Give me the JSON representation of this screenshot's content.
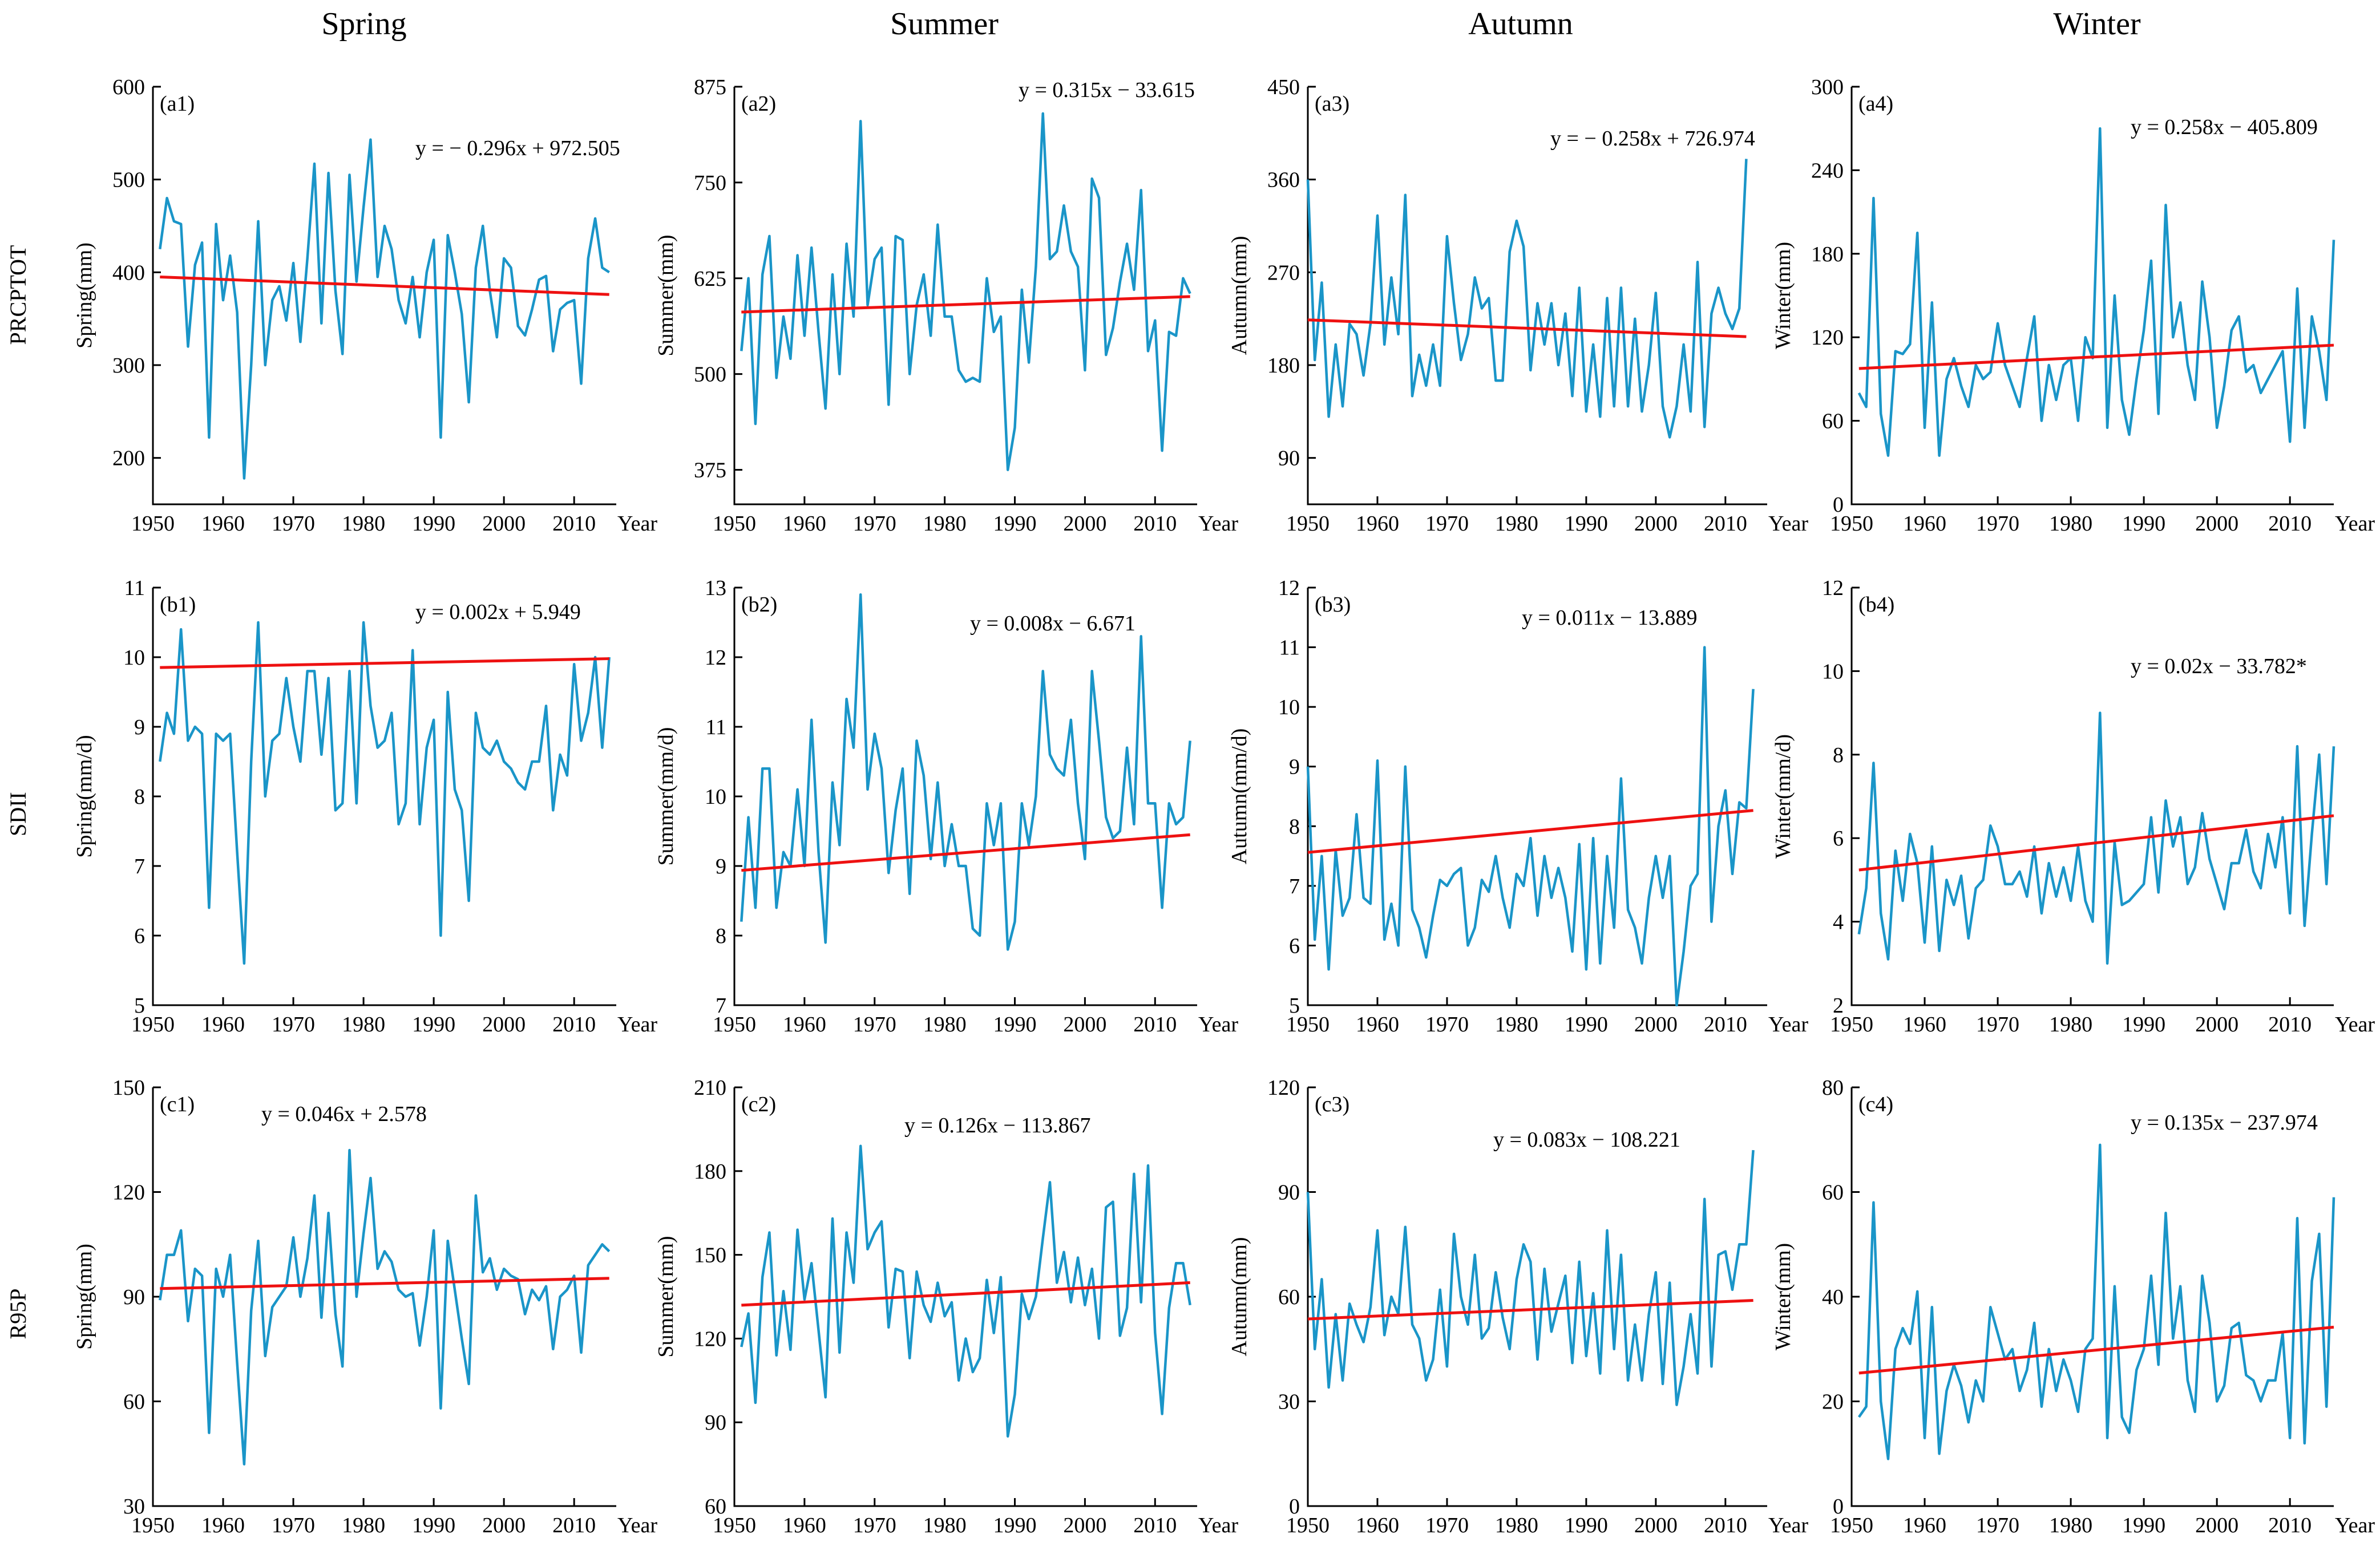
{
  "columns": [
    "Spring",
    "Summer",
    "Autumn",
    "Winter"
  ],
  "rows": [
    "PRCPTOT",
    "SDII",
    "R95P"
  ],
  "x_unit_label": "Year",
  "colors": {
    "series": "#1a95c8",
    "trend": "#ee1111",
    "axis": "#000000"
  },
  "chart_data": [
    {
      "id": "a1",
      "panel_label": "(a1)",
      "type": "line",
      "season": "Spring",
      "index": "PRCPTOT",
      "ylabel": "Spring(mm)",
      "xlabel": "Year",
      "xlim": [
        1950,
        2016
      ],
      "xticks": [
        1950,
        1960,
        1970,
        1980,
        1990,
        2000,
        2010
      ],
      "ylim": [
        150,
        600
      ],
      "yticks": [
        200,
        300,
        400,
        500,
        600
      ],
      "equation": "y = − 0.296x + 972.505",
      "trend": {
        "slope": -0.296,
        "intercept": 972.505
      },
      "x_start": 1951,
      "values": [
        425,
        480,
        455,
        452,
        320,
        408,
        432,
        222,
        452,
        370,
        418,
        357,
        178,
        300,
        455,
        300,
        370,
        385,
        348,
        410,
        325,
        415,
        517,
        345,
        507,
        380,
        312,
        505,
        390,
        470,
        543,
        395,
        450,
        425,
        370,
        345,
        395,
        330,
        400,
        435,
        222,
        440,
        400,
        355,
        260,
        405,
        450,
        380,
        330,
        415,
        405,
        342,
        332,
        360,
        392,
        396,
        315,
        360,
        367,
        370,
        280,
        415,
        458,
        405,
        400
      ]
    },
    {
      "id": "a2",
      "panel_label": "(a2)",
      "type": "line",
      "season": "Summer",
      "index": "PRCPTOT",
      "ylabel": "Summer(mm)",
      "xlabel": "Year",
      "xlim": [
        1950,
        2016
      ],
      "xticks": [
        1950,
        1960,
        1970,
        1980,
        1990,
        2000,
        2010
      ],
      "ylim": [
        330,
        875
      ],
      "yticks": [
        375,
        500,
        625,
        750,
        875
      ],
      "equation": "y = 0.315x − 33.615",
      "trend": {
        "slope": 0.315,
        "intercept": -33.615
      },
      "x_start": 1951,
      "values": [
        530,
        625,
        435,
        630,
        680,
        495,
        575,
        520,
        655,
        550,
        665,
        555,
        455,
        630,
        500,
        670,
        575,
        830,
        590,
        650,
        665,
        460,
        680,
        675,
        500,
        590,
        630,
        550,
        695,
        575,
        575,
        505,
        490,
        495,
        490,
        625,
        555,
        575,
        375,
        430,
        610,
        515,
        640,
        840,
        650,
        660,
        720,
        660,
        640,
        505,
        755,
        730,
        525,
        560,
        620,
        670,
        610,
        740,
        530,
        570,
        400,
        555,
        550,
        625,
        605
      ]
    },
    {
      "id": "a3",
      "panel_label": "(a3)",
      "type": "line",
      "season": "Autumn",
      "index": "PRCPTOT",
      "ylabel": "Autumn(mm)",
      "xlabel": "Year",
      "xlim": [
        1950,
        2016
      ],
      "xticks": [
        1950,
        1960,
        1970,
        1980,
        1990,
        2000,
        2010
      ],
      "ylim": [
        45,
        450
      ],
      "yticks": [
        90,
        180,
        270,
        360,
        450
      ],
      "equation": "y = − 0.258x + 726.974",
      "trend": {
        "slope": -0.258,
        "intercept": 726.974
      },
      "x_start": 1950,
      "values": [
        360,
        185,
        260,
        130,
        200,
        140,
        220,
        210,
        170,
        220,
        325,
        200,
        265,
        210,
        345,
        150,
        190,
        160,
        200,
        160,
        305,
        240,
        185,
        210,
        265,
        235,
        245,
        165,
        165,
        290,
        320,
        295,
        175,
        240,
        200,
        240,
        180,
        230,
        150,
        255,
        135,
        200,
        130,
        245,
        140,
        255,
        140,
        225,
        135,
        180,
        250,
        140,
        110,
        140,
        200,
        135,
        280,
        120,
        230,
        255,
        230,
        215,
        235,
        380
      ]
    },
    {
      "id": "a4",
      "panel_label": "(a4)",
      "type": "line",
      "season": "Winter",
      "index": "PRCPTOT",
      "ylabel": "Winter(mm)",
      "xlabel": "Year",
      "xlim": [
        1950,
        2016
      ],
      "xticks": [
        1950,
        1960,
        1970,
        1980,
        1990,
        2000,
        2010
      ],
      "ylim": [
        0,
        300
      ],
      "yticks": [
        0,
        60,
        120,
        180,
        240,
        300
      ],
      "equation": "y = 0.258x − 405.809",
      "trend": {
        "slope": 0.258,
        "intercept": -405.809
      },
      "x_start": 1951,
      "values": [
        80,
        70,
        220,
        65,
        35,
        110,
        108,
        115,
        195,
        55,
        145,
        35,
        90,
        105,
        85,
        70,
        100,
        90,
        95,
        130,
        100,
        85,
        70,
        105,
        135,
        60,
        100,
        75,
        100,
        105,
        60,
        120,
        105,
        270,
        55,
        150,
        75,
        50,
        90,
        125,
        175,
        65,
        215,
        120,
        145,
        100,
        75,
        160,
        120,
        55,
        85,
        125,
        135,
        95,
        100,
        80,
        90,
        100,
        110,
        45,
        155,
        55,
        135,
        110,
        75,
        190
      ]
    },
    {
      "id": "b1",
      "panel_label": "(b1)",
      "type": "line",
      "season": "Spring",
      "index": "SDII",
      "ylabel": "Spring(mm/d)",
      "xlabel": "Year",
      "xlim": [
        1950,
        2016
      ],
      "xticks": [
        1950,
        1960,
        1970,
        1980,
        1990,
        2000,
        2010
      ],
      "ylim": [
        5,
        11
      ],
      "yticks": [
        5,
        6,
        7,
        8,
        9,
        10,
        11
      ],
      "equation": "y = 0.002x + 5.949",
      "trend": {
        "slope": 0.002,
        "intercept": 5.949
      },
      "x_start": 1951,
      "values": [
        8.5,
        9.2,
        8.9,
        10.4,
        8.8,
        9.0,
        8.9,
        6.4,
        8.9,
        8.8,
        8.9,
        7.2,
        5.6,
        8.5,
        10.5,
        8.0,
        8.8,
        8.9,
        9.7,
        9.0,
        8.5,
        9.8,
        9.8,
        8.6,
        9.7,
        7.8,
        7.9,
        9.8,
        7.9,
        10.5,
        9.3,
        8.7,
        8.8,
        9.2,
        7.6,
        7.9,
        10.1,
        7.6,
        8.7,
        9.1,
        6.0,
        9.5,
        8.1,
        7.8,
        6.5,
        9.2,
        8.7,
        8.6,
        8.8,
        8.5,
        8.4,
        8.2,
        8.1,
        8.5,
        8.5,
        9.3,
        7.8,
        8.6,
        8.3,
        9.9,
        8.8,
        9.2,
        10.0,
        8.7,
        10.0
      ]
    },
    {
      "id": "b2",
      "panel_label": "(b2)",
      "type": "line",
      "season": "Summer",
      "index": "SDII",
      "ylabel": "Summer(mm/d)",
      "xlabel": "Year",
      "xlim": [
        1950,
        2016
      ],
      "xticks": [
        1950,
        1960,
        1970,
        1980,
        1990,
        2000,
        2010
      ],
      "ylim": [
        7,
        13
      ],
      "yticks": [
        7,
        8,
        9,
        10,
        11,
        12,
        13
      ],
      "equation": "y = 0.008x − 6.671",
      "trend": {
        "slope": 0.008,
        "intercept": -6.671
      },
      "x_start": 1951,
      "values": [
        8.2,
        9.7,
        8.4,
        10.4,
        10.4,
        8.4,
        9.2,
        9.0,
        10.1,
        9.0,
        11.1,
        9.2,
        7.9,
        10.2,
        9.3,
        11.4,
        10.7,
        12.9,
        10.1,
        10.9,
        10.4,
        8.9,
        9.8,
        10.4,
        8.6,
        10.8,
        10.3,
        9.1,
        10.2,
        9.0,
        9.6,
        9.0,
        9.0,
        8.1,
        8.0,
        9.9,
        9.3,
        9.9,
        7.8,
        8.2,
        9.9,
        9.3,
        10.0,
        11.8,
        10.6,
        10.4,
        10.3,
        11.1,
        9.9,
        9.1,
        11.8,
        10.8,
        9.7,
        9.4,
        9.5,
        10.7,
        9.6,
        12.3,
        9.9,
        9.9,
        8.4,
        9.9,
        9.6,
        9.7,
        10.8
      ]
    },
    {
      "id": "b3",
      "panel_label": "(b3)",
      "type": "line",
      "season": "Autumn",
      "index": "SDII",
      "ylabel": "Autumn(mm/d)",
      "xlabel": "Year",
      "xlim": [
        1950,
        2016
      ],
      "xticks": [
        1950,
        1960,
        1970,
        1980,
        1990,
        2000,
        2010
      ],
      "ylim": [
        5,
        12
      ],
      "yticks": [
        5,
        6,
        7,
        8,
        9,
        10,
        11,
        12
      ],
      "equation": "y = 0.011x − 13.889",
      "trend": {
        "slope": 0.011,
        "intercept": -13.889
      },
      "x_start": 1950,
      "values": [
        9.0,
        6.1,
        7.5,
        5.6,
        7.6,
        6.5,
        6.8,
        8.2,
        6.8,
        6.7,
        9.1,
        6.1,
        6.7,
        6.0,
        9.0,
        6.6,
        6.3,
        5.8,
        6.5,
        7.1,
        7.0,
        7.2,
        7.3,
        6.0,
        6.3,
        7.1,
        6.9,
        7.5,
        6.8,
        6.3,
        7.2,
        7.0,
        7.8,
        6.5,
        7.5,
        6.8,
        7.3,
        6.8,
        5.9,
        7.7,
        5.6,
        7.8,
        5.7,
        7.5,
        6.3,
        8.8,
        6.6,
        6.3,
        5.7,
        6.8,
        7.5,
        6.8,
        7.5,
        5.0,
        5.9,
        7.0,
        7.2,
        11.0,
        6.4,
        8.0,
        8.6,
        7.2,
        8.4,
        8.3,
        10.3
      ]
    },
    {
      "id": "b4",
      "panel_label": "(b4)",
      "type": "line",
      "season": "Winter",
      "index": "SDII",
      "ylabel": "Winter(mm/d)",
      "xlabel": "Year",
      "xlim": [
        1950,
        2016
      ],
      "xticks": [
        1950,
        1960,
        1970,
        1980,
        1990,
        2000,
        2010
      ],
      "ylim": [
        2,
        12
      ],
      "yticks": [
        2,
        4,
        6,
        8,
        10,
        12
      ],
      "equation": "y = 0.02x − 33.782*",
      "trend": {
        "slope": 0.02,
        "intercept": -33.782
      },
      "x_start": 1951,
      "values": [
        3.7,
        4.8,
        7.8,
        4.2,
        3.1,
        5.7,
        4.5,
        6.1,
        5.4,
        3.5,
        5.8,
        3.3,
        5.0,
        4.4,
        5.1,
        3.6,
        4.8,
        5.0,
        6.3,
        5.8,
        4.9,
        4.9,
        5.2,
        4.6,
        5.8,
        4.2,
        5.4,
        4.6,
        5.3,
        4.5,
        5.8,
        4.5,
        4.0,
        9.0,
        3.0,
        5.9,
        4.4,
        4.5,
        4.7,
        4.9,
        6.5,
        4.7,
        6.9,
        5.8,
        6.5,
        4.9,
        5.3,
        6.6,
        5.5,
        4.9,
        4.3,
        5.4,
        5.4,
        6.2,
        5.2,
        4.8,
        6.1,
        5.3,
        6.5,
        4.2,
        8.2,
        3.9,
        6.1,
        8.0,
        4.9,
        8.2
      ]
    },
    {
      "id": "c1",
      "panel_label": "(c1)",
      "type": "line",
      "season": "Spring",
      "index": "R95P",
      "ylabel": "Spring(mm)",
      "xlabel": "Year",
      "xlim": [
        1950,
        2016
      ],
      "xticks": [
        1950,
        1960,
        1970,
        1980,
        1990,
        2000,
        2010
      ],
      "ylim": [
        30,
        150
      ],
      "yticks": [
        30,
        60,
        90,
        120,
        150
      ],
      "equation": "y = 0.046x + 2.578",
      "trend": {
        "slope": 0.046,
        "intercept": 2.578
      },
      "x_start": 1951,
      "values": [
        89,
        102,
        102,
        109,
        83,
        98,
        96,
        51,
        98,
        90,
        102,
        71,
        42,
        86,
        106,
        73,
        87,
        90,
        93,
        107,
        90,
        101,
        119,
        84,
        114,
        85,
        70,
        132,
        90,
        108,
        124,
        98,
        103,
        100,
        92,
        90,
        91,
        76,
        90,
        109,
        58,
        106,
        92,
        78,
        65,
        119,
        97,
        101,
        92,
        98,
        96,
        95,
        85,
        92,
        89,
        93,
        75,
        90,
        92,
        96,
        74,
        99,
        102,
        105,
        103
      ]
    },
    {
      "id": "c2",
      "panel_label": "(c2)",
      "type": "line",
      "season": "Summer",
      "index": "R95P",
      "ylabel": "Summer(mm)",
      "xlabel": "Year",
      "xlim": [
        1950,
        2016
      ],
      "xticks": [
        1950,
        1960,
        1970,
        1980,
        1990,
        2000,
        2010
      ],
      "ylim": [
        60,
        210
      ],
      "yticks": [
        60,
        90,
        120,
        150,
        180,
        210
      ],
      "equation": "y = 0.126x − 113.867",
      "trend": {
        "slope": 0.126,
        "intercept": -113.867
      },
      "x_start": 1951,
      "values": [
        117,
        129,
        97,
        142,
        158,
        114,
        137,
        116,
        159,
        134,
        147,
        123,
        99,
        163,
        115,
        158,
        140,
        189,
        152,
        158,
        162,
        124,
        145,
        144,
        113,
        144,
        132,
        126,
        140,
        128,
        133,
        105,
        120,
        108,
        113,
        141,
        122,
        142,
        85,
        100,
        136,
        127,
        135,
        156,
        176,
        140,
        151,
        133,
        149,
        132,
        145,
        120,
        167,
        169,
        121,
        131,
        179,
        133,
        182,
        122,
        93,
        131,
        147,
        147,
        132
      ]
    },
    {
      "id": "c3",
      "panel_label": "(c3)",
      "type": "line",
      "season": "Autumn",
      "index": "R95P",
      "ylabel": "Autumn(mm)",
      "xlabel": "Year",
      "xlim": [
        1950,
        2016
      ],
      "xticks": [
        1950,
        1960,
        1970,
        1980,
        1990,
        2000,
        2010
      ],
      "ylim": [
        0,
        120
      ],
      "yticks": [
        0,
        30,
        60,
        90,
        120
      ],
      "equation": "y = 0.083x − 108.221",
      "trend": {
        "slope": 0.083,
        "intercept": -108.221
      },
      "x_start": 1950,
      "values": [
        90,
        45,
        65,
        34,
        55,
        36,
        58,
        52,
        47,
        57,
        79,
        49,
        60,
        55,
        80,
        52,
        48,
        36,
        42,
        62,
        40,
        78,
        60,
        52,
        72,
        48,
        51,
        67,
        54,
        45,
        65,
        75,
        70,
        42,
        68,
        50,
        58,
        66,
        41,
        70,
        43,
        61,
        38,
        79,
        45,
        72,
        36,
        52,
        36,
        55,
        67,
        35,
        64,
        29,
        40,
        55,
        38,
        88,
        40,
        72,
        73,
        62,
        75,
        75,
        102
      ]
    },
    {
      "id": "c4",
      "panel_label": "(c4)",
      "type": "line",
      "season": "Winter",
      "index": "R95P",
      "ylabel": "Winter(mm)",
      "xlabel": "Year",
      "xlim": [
        1950,
        2016
      ],
      "xticks": [
        1950,
        1960,
        1970,
        1980,
        1990,
        2000,
        2010
      ],
      "ylim": [
        0,
        80
      ],
      "yticks": [
        0,
        20,
        40,
        60,
        80
      ],
      "equation": "y = 0.135x − 237.974",
      "trend": {
        "slope": 0.135,
        "intercept": -237.974
      },
      "x_start": 1951,
      "values": [
        17,
        19,
        58,
        20,
        9,
        30,
        34,
        31,
        41,
        13,
        38,
        10,
        22,
        27,
        23,
        16,
        24,
        20,
        38,
        33,
        28,
        30,
        22,
        26,
        35,
        19,
        30,
        22,
        28,
        24,
        18,
        30,
        32,
        69,
        13,
        42,
        17,
        14,
        26,
        30,
        44,
        27,
        56,
        32,
        42,
        24,
        18,
        44,
        35,
        20,
        23,
        34,
        35,
        25,
        24,
        20,
        24,
        24,
        33,
        13,
        55,
        12,
        43,
        52,
        19,
        59
      ]
    }
  ]
}
